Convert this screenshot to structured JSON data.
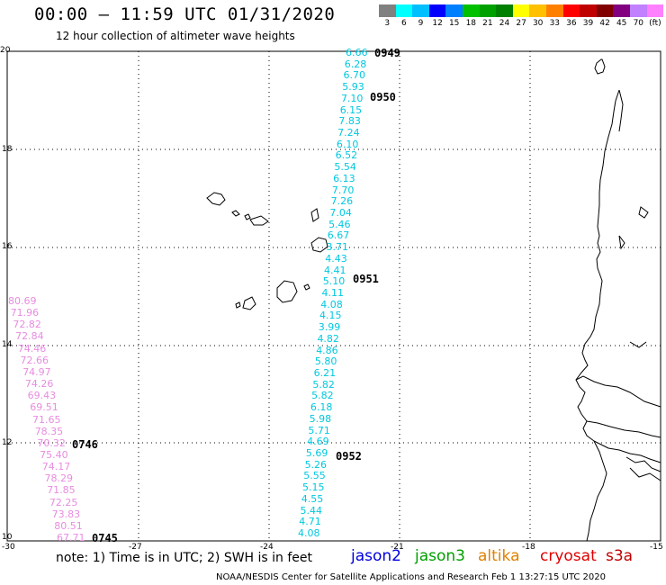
{
  "header": {
    "title": "00:00 – 11:59 UTC 01/31/2020",
    "subtitle": "12 hour collection of altimeter wave heights"
  },
  "legend": {
    "colors": [
      "#808080",
      "#00ffff",
      "#00bfff",
      "#0000ff",
      "#0080ff",
      "#00c000",
      "#00a000",
      "#008000",
      "#ffff00",
      "#ffc000",
      "#ff8000",
      "#ff0000",
      "#c00000",
      "#800000",
      "#800080",
      "#c080ff",
      "#ff80ff"
    ],
    "labels": [
      "3",
      "6",
      "9",
      "12",
      "15",
      "18",
      "21",
      "24",
      "27",
      "30",
      "33",
      "36",
      "39",
      "42",
      "45",
      "70",
      "(ft)"
    ]
  },
  "axes": {
    "x_ticks": [
      "-30",
      "-27",
      "-24",
      "-21",
      "-18",
      "-15"
    ],
    "y_ticks": [
      "20",
      "18",
      "16",
      "14",
      "12",
      "10"
    ]
  },
  "tracks": {
    "jason2_cyan": {
      "color": "#00c8e0",
      "values": [
        "6.66",
        "6.28",
        "6.70",
        "5.93",
        "7.10",
        "6.15",
        "7.83",
        "7.24",
        "6.10",
        "6.52",
        "5.54",
        "6.13",
        "7.70",
        "7.26",
        "7.04",
        "5.46",
        "6.67",
        "3.71",
        "4.43",
        "4.41",
        "5.10",
        "4.11",
        "4.08",
        "4.15",
        "3.99",
        "4.82",
        "4.86",
        "5.80",
        "6.21",
        "5.82",
        "5.82",
        "6.18",
        "5.98",
        "5.71",
        "4.69",
        "5.69",
        "5.26",
        "5.55",
        "5.15",
        "4.55",
        "5.44",
        "4.71",
        "4.08"
      ]
    },
    "altika_pink": {
      "color": "#e88ce0",
      "values": [
        "80.69",
        "71.96",
        "72.82",
        "72.84",
        "74.46",
        "72.66",
        "74.97",
        "74.26",
        "69.43",
        "69.51",
        "71.65",
        "78.35",
        "70.32",
        "75.40",
        "74.17",
        "78.29",
        "71.85",
        "72.25",
        "73.83",
        "80.51",
        "67.71"
      ]
    }
  },
  "time_labels": [
    {
      "text": "0949",
      "color": "#e00000"
    },
    {
      "text": "0950",
      "color": "#e00000"
    },
    {
      "text": "0951",
      "color": "#e00000"
    },
    {
      "text": "0952",
      "color": "#e00000"
    },
    {
      "text": "0746",
      "color": "#e08000"
    },
    {
      "text": "0745",
      "color": "#e08000"
    }
  ],
  "footer": {
    "note": "note: 1) Time is in UTC; 2) SWH is in feet",
    "satellites": [
      {
        "name": "jason2",
        "color": "#0000e0"
      },
      {
        "name": "jason3",
        "color": "#00a000"
      },
      {
        "name": "altika",
        "color": "#e08000"
      },
      {
        "name": "cryosat",
        "color": "#e00000"
      },
      {
        "name": "s3a",
        "color": "#c00000"
      }
    ],
    "credit": "NOAA/NESDIS Center for Satellite Applications and Research    Feb  1 13:27:15 UTC 2020"
  }
}
